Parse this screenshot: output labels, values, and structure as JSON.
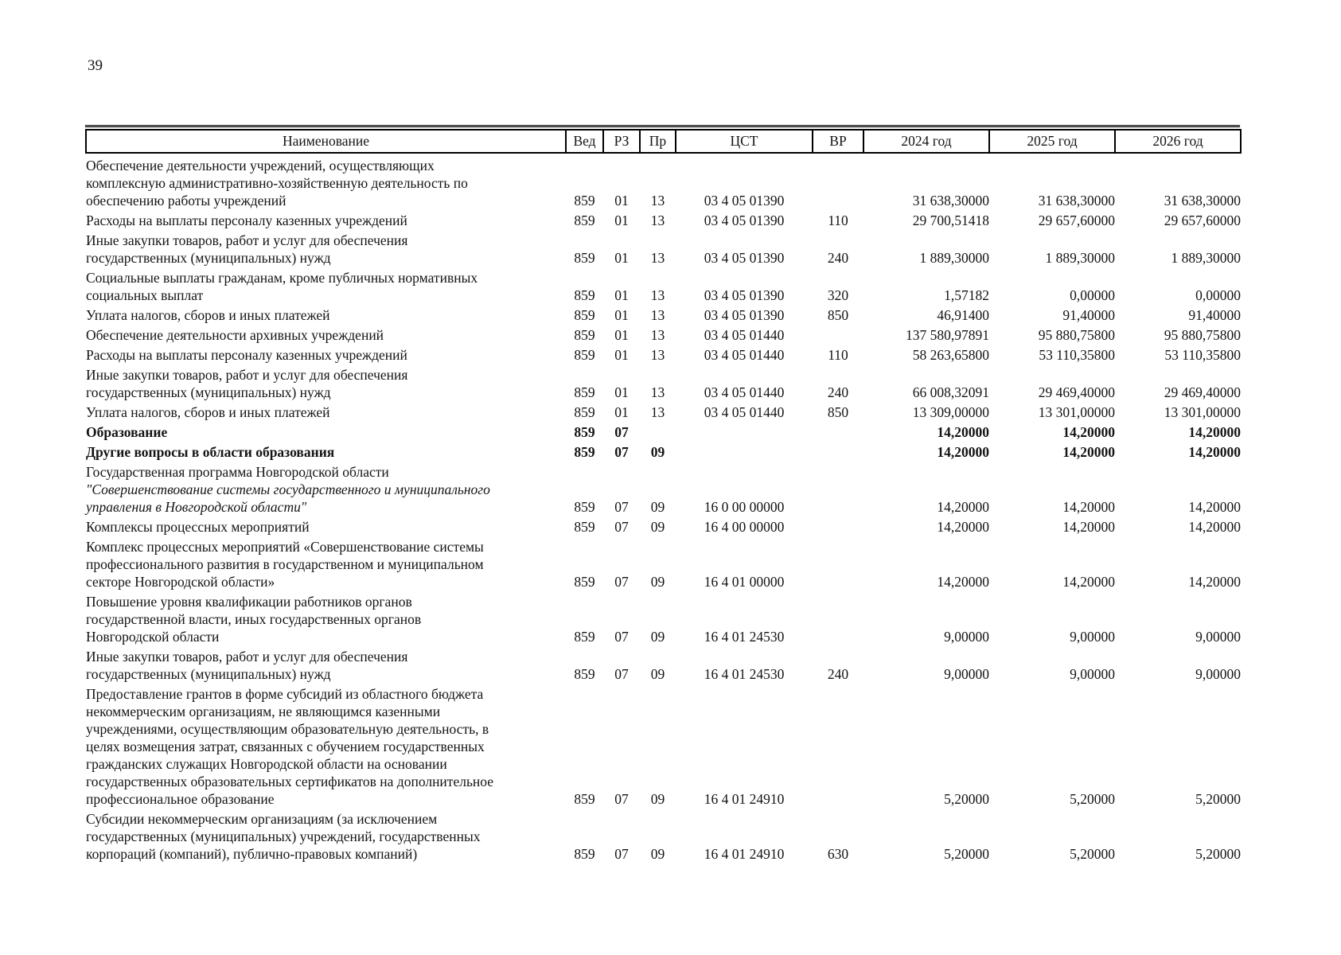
{
  "page": {
    "number": "39"
  },
  "table": {
    "headers": [
      "Наименование",
      "Вед",
      "РЗ",
      "Пр",
      "ЦСТ",
      "ВР",
      "2024 год",
      "2025 год",
      "2026 год"
    ],
    "rows": [
      {
        "name_lines": [
          "Обеспечение деятельности учреждений, осуществляющих",
          "комплексную административно-хозяйственную деятельность по",
          "обеспечению работы учреждений"
        ],
        "ved": "859",
        "rz": "01",
        "pr": "13",
        "cst": "03 4 05 01390",
        "vr": "",
        "y2024": "31 638,30000",
        "y2025": "31 638,30000",
        "y2026": "31 638,30000",
        "bold": false
      },
      {
        "name_lines": [
          "Расходы на выплаты персоналу казенных учреждений"
        ],
        "ved": "859",
        "rz": "01",
        "pr": "13",
        "cst": "03 4 05 01390",
        "vr": "110",
        "y2024": "29 700,51418",
        "y2025": "29 657,60000",
        "y2026": "29 657,60000",
        "bold": false
      },
      {
        "name_lines": [
          "Иные закупки товаров, работ и услуг для обеспечения",
          "государственных (муниципальных) нужд"
        ],
        "ved": "859",
        "rz": "01",
        "pr": "13",
        "cst": "03 4 05 01390",
        "vr": "240",
        "y2024": "1 889,30000",
        "y2025": "1 889,30000",
        "y2026": "1 889,30000",
        "bold": false
      },
      {
        "name_lines": [
          "Социальные выплаты гражданам, кроме публичных нормативных",
          "социальных выплат"
        ],
        "ved": "859",
        "rz": "01",
        "pr": "13",
        "cst": "03 4 05 01390",
        "vr": "320",
        "y2024": "1,57182",
        "y2025": "0,00000",
        "y2026": "0,00000",
        "bold": false
      },
      {
        "name_lines": [
          "Уплата налогов, сборов и иных платежей"
        ],
        "ved": "859",
        "rz": "01",
        "pr": "13",
        "cst": "03 4 05 01390",
        "vr": "850",
        "y2024": "46,91400",
        "y2025": "91,40000",
        "y2026": "91,40000",
        "bold": false
      },
      {
        "name_lines": [
          "Обеспечение деятельности архивных учреждений"
        ],
        "ved": "859",
        "rz": "01",
        "pr": "13",
        "cst": "03 4 05 01440",
        "vr": "",
        "y2024": "137 580,97891",
        "y2025": "95 880,75800",
        "y2026": "95 880,75800",
        "bold": false
      },
      {
        "name_lines": [
          "Расходы на выплаты персоналу казенных учреждений"
        ],
        "ved": "859",
        "rz": "01",
        "pr": "13",
        "cst": "03 4 05 01440",
        "vr": "110",
        "y2024": "58 263,65800",
        "y2025": "53 110,35800",
        "y2026": "53 110,35800",
        "bold": false
      },
      {
        "name_lines": [
          "Иные закупки товаров, работ и услуг для обеспечения",
          "государственных (муниципальных) нужд"
        ],
        "ved": "859",
        "rz": "01",
        "pr": "13",
        "cst": "03 4 05 01440",
        "vr": "240",
        "y2024": "66 008,32091",
        "y2025": "29 469,40000",
        "y2026": "29 469,40000",
        "bold": false
      },
      {
        "name_lines": [
          "Уплата налогов, сборов и иных платежей"
        ],
        "ved": "859",
        "rz": "01",
        "pr": "13",
        "cst": "03 4 05 01440",
        "vr": "850",
        "y2024": "13 309,00000",
        "y2025": "13 301,00000",
        "y2026": "13 301,00000",
        "bold": false
      },
      {
        "name_lines": [
          "Образование"
        ],
        "ved": "859",
        "rz": "07",
        "pr": "",
        "cst": "",
        "vr": "",
        "y2024": "14,20000",
        "y2025": "14,20000",
        "y2026": "14,20000",
        "bold": true
      },
      {
        "name_lines": [
          "Другие вопросы в области образования"
        ],
        "ved": "859",
        "rz": "07",
        "pr": "09",
        "cst": "",
        "vr": "",
        "y2024": "14,20000",
        "y2025": "14,20000",
        "y2026": "14,20000",
        "bold": true
      },
      {
        "name_lines": [
          "Государственная программа Новгородской области",
          "\"Совершенствование системы государственного и муниципального",
          "управления в Новгородской области\""
        ],
        "italic_lines": [
          1,
          2
        ],
        "ved": "859",
        "rz": "07",
        "pr": "09",
        "cst": "16 0 00 00000",
        "vr": "",
        "y2024": "14,20000",
        "y2025": "14,20000",
        "y2026": "14,20000",
        "bold": false
      },
      {
        "name_lines": [
          "Комплексы процессных мероприятий"
        ],
        "ved": "859",
        "rz": "07",
        "pr": "09",
        "cst": "16 4 00 00000",
        "vr": "",
        "y2024": "14,20000",
        "y2025": "14,20000",
        "y2026": "14,20000",
        "bold": false
      },
      {
        "name_lines": [
          "Комплекс процессных мероприятий «Совершенствование системы",
          "профессионального развития в государственном и муниципальном",
          "секторе Новгородской области»"
        ],
        "ved": "859",
        "rz": "07",
        "pr": "09",
        "cst": "16 4 01 00000",
        "vr": "",
        "y2024": "14,20000",
        "y2025": "14,20000",
        "y2026": "14,20000",
        "bold": false
      },
      {
        "name_lines": [
          "Повышение уровня квалификации работников органов",
          "государственной власти, иных государственных органов",
          "Новгородской области"
        ],
        "ved": "859",
        "rz": "07",
        "pr": "09",
        "cst": "16 4 01 24530",
        "vr": "",
        "y2024": "9,00000",
        "y2025": "9,00000",
        "y2026": "9,00000",
        "bold": false
      },
      {
        "name_lines": [
          "Иные закупки товаров, работ и услуг для обеспечения",
          "государственных (муниципальных) нужд"
        ],
        "ved": "859",
        "rz": "07",
        "pr": "09",
        "cst": "16 4 01 24530",
        "vr": "240",
        "y2024": "9,00000",
        "y2025": "9,00000",
        "y2026": "9,00000",
        "bold": false
      },
      {
        "name_lines": [
          "Предоставление грантов в форме субсидий из областного бюджета",
          "некоммерческим организациям, не являющимся казенными",
          "учреждениями, осуществляющим образовательную деятельность, в",
          "целях возмещения затрат, связанных с обучением государственных",
          "гражданских служащих Новгородской области на основании",
          "государственных образовательных сертификатов на дополнительное",
          "профессиональное образование"
        ],
        "ved": "859",
        "rz": "07",
        "pr": "09",
        "cst": "16 4 01 24910",
        "vr": "",
        "y2024": "5,20000",
        "y2025": "5,20000",
        "y2026": "5,20000",
        "bold": false
      },
      {
        "name_lines": [
          "Субсидии некоммерческим организациям (за исключением",
          "государственных (муниципальных) учреждений, государственных",
          "корпораций (компаний), публично-правовых компаний)"
        ],
        "ved": "859",
        "rz": "07",
        "pr": "09",
        "cst": "16 4 01 24910",
        "vr": "630",
        "y2024": "5,20000",
        "y2025": "5,20000",
        "y2026": "5,20000",
        "bold": false
      }
    ]
  }
}
